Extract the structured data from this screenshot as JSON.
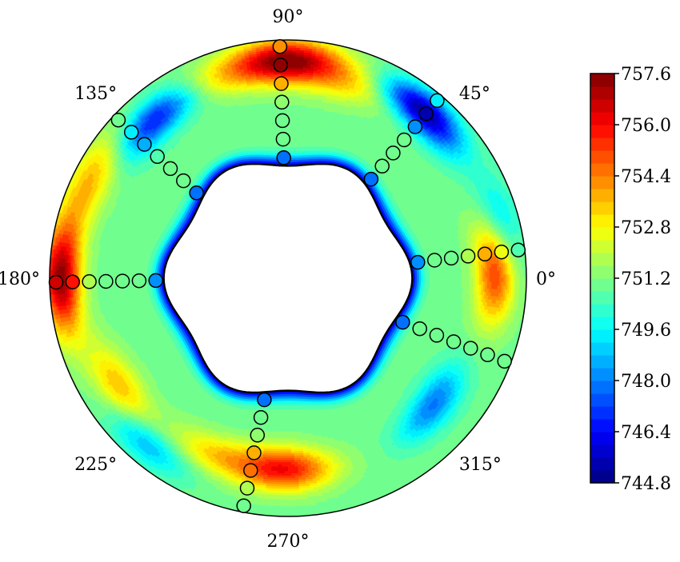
{
  "chart_data": {
    "type": "heatmap",
    "subtype": "annular polar contour",
    "angle_labels": [
      "0°",
      "45°",
      "90°",
      "135°",
      "180°",
      "225°",
      "270°",
      "315°"
    ],
    "angle_values": [
      0,
      45,
      90,
      135,
      180,
      225,
      270,
      315
    ],
    "colormap": "jet",
    "colorbar": {
      "ticks": [
        744.8,
        746.4,
        748.0,
        749.6,
        751.2,
        752.8,
        754.4,
        756.0,
        757.6
      ],
      "tick_labels": [
        "744.8",
        "746.4",
        "748.0",
        "749.6",
        "751.2",
        "752.8",
        "754.4",
        "756.0",
        "757.6"
      ],
      "vmin": 744.8,
      "vmax": 757.6,
      "placement": "right"
    },
    "field": {
      "background": 751.0,
      "inner_wall_band": {
        "min_value": 745.6,
        "note": "deep blue band along the inner boundary"
      },
      "hotspots": [
        {
          "angle": 90,
          "r": 0.82,
          "value": 757.3
        },
        {
          "angle": 180,
          "r": 0.88,
          "value": 757.4
        },
        {
          "angle": 2,
          "r": 0.72,
          "value": 755.6
        },
        {
          "angle": 269,
          "r": 0.62,
          "value": 755.9
        },
        {
          "angle": 214,
          "r": 0.7,
          "value": 753.9
        },
        {
          "angle": 153,
          "r": 0.84,
          "value": 753.6
        },
        {
          "angle": 107,
          "r": 0.75,
          "value": 752.8
        },
        {
          "angle": 72,
          "r": 0.7,
          "value": 753.1
        },
        {
          "angle": 248,
          "r": 0.58,
          "value": 753.2
        }
      ],
      "coldspots": [
        {
          "angle": 51,
          "r": 0.78,
          "value": 745.0
        },
        {
          "angle": 130,
          "r": 0.72,
          "value": 746.6
        },
        {
          "angle": 319,
          "r": 0.62,
          "value": 747.9
        },
        {
          "angle": 228,
          "r": 0.8,
          "value": 748.4
        },
        {
          "angle": 14,
          "r": 0.82,
          "value": 748.9
        }
      ]
    },
    "probe_rays": [
      {
        "angle": 92
      },
      {
        "angle": 137
      },
      {
        "angle": 181
      },
      {
        "angle": 259
      },
      {
        "angle": 339
      },
      {
        "angle": 7
      },
      {
        "angle": 50
      }
    ],
    "markers_per_ray": 7,
    "xlabel": "",
    "ylabel": ""
  }
}
